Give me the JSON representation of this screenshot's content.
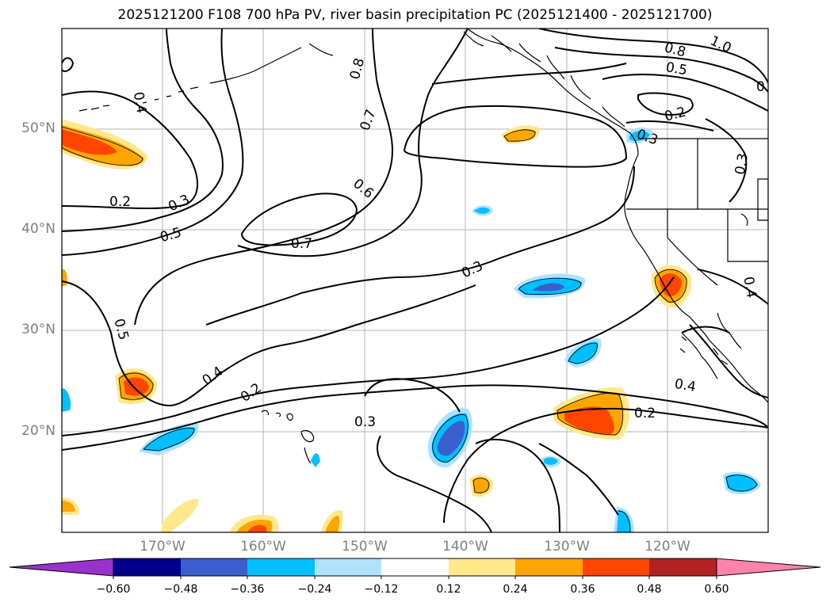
{
  "title": "2025121200 F108 700 hPa PV, river basin precipitation PC (2025121400 - 2025121700)",
  "lat_labels": [
    "50°N",
    "40°N",
    "30°N",
    "20°N"
  ],
  "lon_labels": [
    "170°W",
    "160°W",
    "150°W",
    "140°W",
    "130°W",
    "120°W"
  ],
  "colorbar": {
    "ticks": [
      "−0.60",
      "−0.48",
      "−0.36",
      "−0.24",
      "−0.12",
      "0.12",
      "0.24",
      "0.36",
      "0.48",
      "0.60"
    ],
    "colors": [
      "#9932cc",
      "#00008b",
      "#3a5fcd",
      "#00bfff",
      "#b0e2ff",
      "#ffffff",
      "#ffe88c",
      "#ffa500",
      "#ff4500",
      "#b22222",
      "#ff82ab"
    ]
  },
  "contour_labels": [
    "0.4",
    "0.8",
    "0.7",
    "0.6",
    "0.7",
    "0.5",
    "0.3",
    "0.2",
    "0.5",
    "0.4",
    "0.2",
    "0.3",
    "0.3",
    "0.2",
    "0.4",
    "1.0",
    "0.8",
    "0.5",
    "0.2",
    "0.3",
    "0.3",
    "0.4",
    "0"
  ],
  "map": {
    "lat_range": [
      10,
      60
    ],
    "lon_range": [
      -180,
      -110
    ],
    "fields": [
      "700 hPa PV (contours)",
      "river basin precipitation PC (shaded)"
    ],
    "grid": true
  }
}
